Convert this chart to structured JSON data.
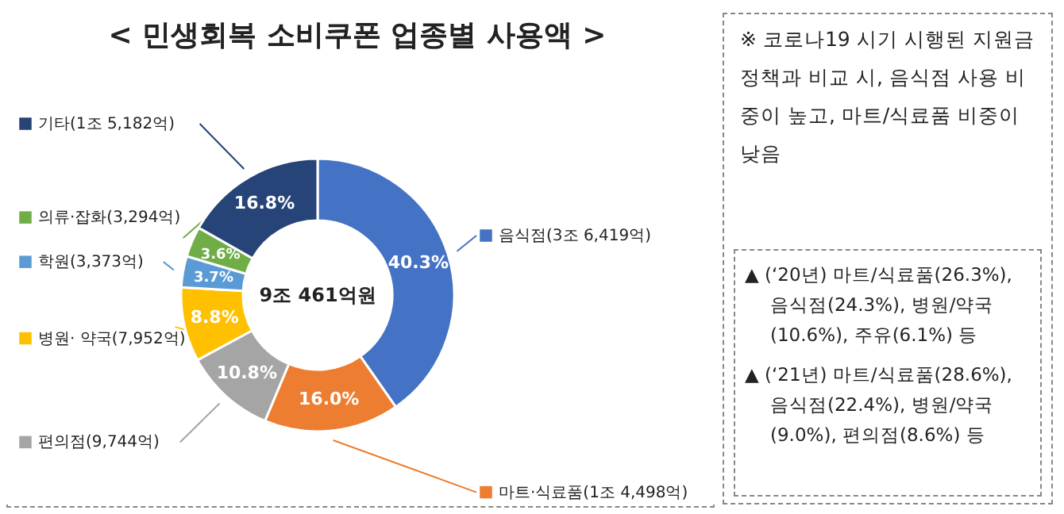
{
  "chart_data": {
    "type": "donut",
    "title": "< 민생회복 소비쿠폰 업종별 사용액 >",
    "categories": [
      "음식점(3조 6,419억)",
      "마트·식료품(1조 4,498억)",
      "편의점(9,744억)",
      "병원· 약국(7,952억)",
      "학원(3,373억)",
      "의류·잡화(3,294억)",
      "기타(1조 5,182억)"
    ],
    "values": [
      40.3,
      16.0,
      10.8,
      8.8,
      3.7,
      3.6,
      16.8
    ],
    "value_labels": [
      "40.3%",
      "16.0%",
      "10.8%",
      "8.8%",
      "3.7%",
      "3.6%",
      "16.8%"
    ],
    "colors": [
      "#4472c4",
      "#ed7d31",
      "#a5a5a5",
      "#ffc000",
      "#5b9bd5",
      "#70ad47",
      "#264478"
    ],
    "legend": "bottom right",
    "annotations": [
      "9조 461억원",
      "※ 코로나19 시기 시행된 지원금 정책과 비교 시, 음식점 사용 비중이 높고, 마트/식료품 비중이 낮음",
      "▲ (‘20년) 마트/식료품(26.3%), 음식점(24.3%), 병원/약국(10.6%), 주유(6.1%) 등",
      "▲ (‘21년) 마트/식료품(28.6%), 음식점(22.4%), 병원/약국(9.0%), 편의점(8.6%) 등"
    ]
  }
}
